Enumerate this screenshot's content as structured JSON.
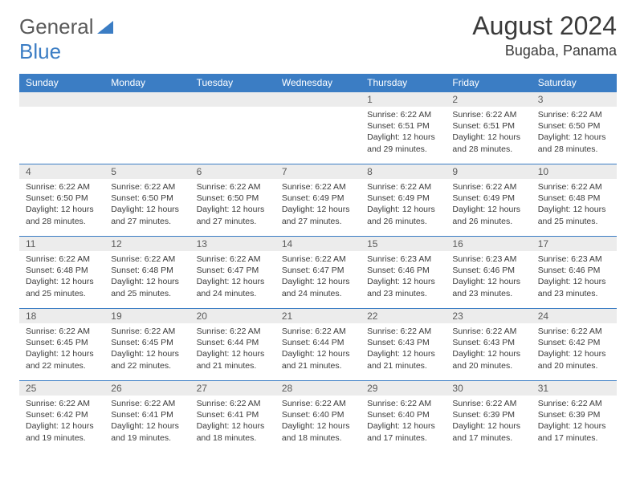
{
  "logo": {
    "text1": "General",
    "text2": "Blue"
  },
  "title": "August 2024",
  "location": "Bugaba, Panama",
  "headers": [
    "Sunday",
    "Monday",
    "Tuesday",
    "Wednesday",
    "Thursday",
    "Friday",
    "Saturday"
  ],
  "theme": {
    "header_bg": "#3b7dc4",
    "header_fg": "#ffffff",
    "daynum_bg": "#ececec",
    "daynum_fg": "#5a5a5a",
    "border": "#3b7dc4",
    "text": "#3a3a3a"
  },
  "weeks": [
    [
      null,
      null,
      null,
      null,
      {
        "n": "1",
        "sr": "6:22 AM",
        "ss": "6:51 PM",
        "dl": "12 hours and 29 minutes."
      },
      {
        "n": "2",
        "sr": "6:22 AM",
        "ss": "6:51 PM",
        "dl": "12 hours and 28 minutes."
      },
      {
        "n": "3",
        "sr": "6:22 AM",
        "ss": "6:50 PM",
        "dl": "12 hours and 28 minutes."
      }
    ],
    [
      {
        "n": "4",
        "sr": "6:22 AM",
        "ss": "6:50 PM",
        "dl": "12 hours and 28 minutes."
      },
      {
        "n": "5",
        "sr": "6:22 AM",
        "ss": "6:50 PM",
        "dl": "12 hours and 27 minutes."
      },
      {
        "n": "6",
        "sr": "6:22 AM",
        "ss": "6:50 PM",
        "dl": "12 hours and 27 minutes."
      },
      {
        "n": "7",
        "sr": "6:22 AM",
        "ss": "6:49 PM",
        "dl": "12 hours and 27 minutes."
      },
      {
        "n": "8",
        "sr": "6:22 AM",
        "ss": "6:49 PM",
        "dl": "12 hours and 26 minutes."
      },
      {
        "n": "9",
        "sr": "6:22 AM",
        "ss": "6:49 PM",
        "dl": "12 hours and 26 minutes."
      },
      {
        "n": "10",
        "sr": "6:22 AM",
        "ss": "6:48 PM",
        "dl": "12 hours and 25 minutes."
      }
    ],
    [
      {
        "n": "11",
        "sr": "6:22 AM",
        "ss": "6:48 PM",
        "dl": "12 hours and 25 minutes."
      },
      {
        "n": "12",
        "sr": "6:22 AM",
        "ss": "6:48 PM",
        "dl": "12 hours and 25 minutes."
      },
      {
        "n": "13",
        "sr": "6:22 AM",
        "ss": "6:47 PM",
        "dl": "12 hours and 24 minutes."
      },
      {
        "n": "14",
        "sr": "6:22 AM",
        "ss": "6:47 PM",
        "dl": "12 hours and 24 minutes."
      },
      {
        "n": "15",
        "sr": "6:23 AM",
        "ss": "6:46 PM",
        "dl": "12 hours and 23 minutes."
      },
      {
        "n": "16",
        "sr": "6:23 AM",
        "ss": "6:46 PM",
        "dl": "12 hours and 23 minutes."
      },
      {
        "n": "17",
        "sr": "6:23 AM",
        "ss": "6:46 PM",
        "dl": "12 hours and 23 minutes."
      }
    ],
    [
      {
        "n": "18",
        "sr": "6:22 AM",
        "ss": "6:45 PM",
        "dl": "12 hours and 22 minutes."
      },
      {
        "n": "19",
        "sr": "6:22 AM",
        "ss": "6:45 PM",
        "dl": "12 hours and 22 minutes."
      },
      {
        "n": "20",
        "sr": "6:22 AM",
        "ss": "6:44 PM",
        "dl": "12 hours and 21 minutes."
      },
      {
        "n": "21",
        "sr": "6:22 AM",
        "ss": "6:44 PM",
        "dl": "12 hours and 21 minutes."
      },
      {
        "n": "22",
        "sr": "6:22 AM",
        "ss": "6:43 PM",
        "dl": "12 hours and 21 minutes."
      },
      {
        "n": "23",
        "sr": "6:22 AM",
        "ss": "6:43 PM",
        "dl": "12 hours and 20 minutes."
      },
      {
        "n": "24",
        "sr": "6:22 AM",
        "ss": "6:42 PM",
        "dl": "12 hours and 20 minutes."
      }
    ],
    [
      {
        "n": "25",
        "sr": "6:22 AM",
        "ss": "6:42 PM",
        "dl": "12 hours and 19 minutes."
      },
      {
        "n": "26",
        "sr": "6:22 AM",
        "ss": "6:41 PM",
        "dl": "12 hours and 19 minutes."
      },
      {
        "n": "27",
        "sr": "6:22 AM",
        "ss": "6:41 PM",
        "dl": "12 hours and 18 minutes."
      },
      {
        "n": "28",
        "sr": "6:22 AM",
        "ss": "6:40 PM",
        "dl": "12 hours and 18 minutes."
      },
      {
        "n": "29",
        "sr": "6:22 AM",
        "ss": "6:40 PM",
        "dl": "12 hours and 17 minutes."
      },
      {
        "n": "30",
        "sr": "6:22 AM",
        "ss": "6:39 PM",
        "dl": "12 hours and 17 minutes."
      },
      {
        "n": "31",
        "sr": "6:22 AM",
        "ss": "6:39 PM",
        "dl": "12 hours and 17 minutes."
      }
    ]
  ],
  "labels": {
    "sunrise": "Sunrise: ",
    "sunset": "Sunset: ",
    "daylight": "Daylight: "
  }
}
